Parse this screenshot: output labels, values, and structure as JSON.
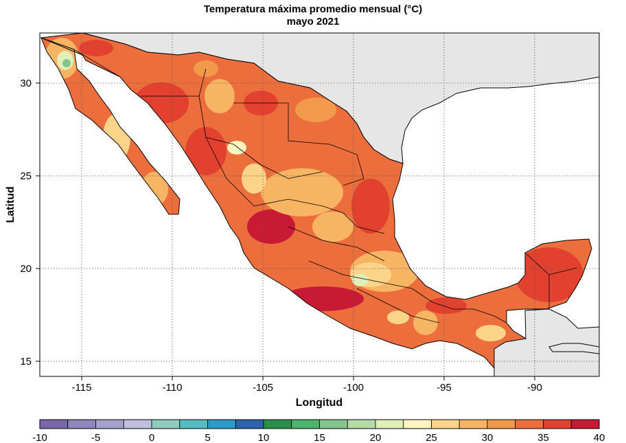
{
  "title": "Temperatura máxima promedio mensual (°C)",
  "subtitle": "mayo 2021",
  "chart_data": {
    "type": "heatmap",
    "title": "Temperatura máxima promedio mensual (°C)",
    "subtitle": "mayo 2021",
    "xlabel": "Longitud",
    "ylabel": "Latitud",
    "xlim": [
      -117.3,
      -86.3
    ],
    "ylim": [
      14.4,
      32.7
    ],
    "x_ticks": [
      -115,
      -110,
      -105,
      -100,
      -95,
      -90
    ],
    "y_ticks": [
      15,
      20,
      25,
      30
    ],
    "grid": "dotted",
    "legend": "bottom",
    "colorbar": {
      "ticks": [
        -10,
        -5,
        0,
        5,
        10,
        15,
        20,
        25,
        30,
        35,
        40
      ],
      "bins": [
        {
          "from": -10,
          "to": -7.5,
          "color": "#7a67ab"
        },
        {
          "from": -7.5,
          "to": -5,
          "color": "#8f86bd"
        },
        {
          "from": -5,
          "to": -2.5,
          "color": "#a4a1cb"
        },
        {
          "from": -2.5,
          "to": 0,
          "color": "#c0bfe0"
        },
        {
          "from": 0,
          "to": 2.5,
          "color": "#8dcdbd"
        },
        {
          "from": 2.5,
          "to": 5,
          "color": "#55bcc4"
        },
        {
          "from": 5,
          "to": 7.5,
          "color": "#2b9cc8"
        },
        {
          "from": 7.5,
          "to": 10,
          "color": "#2e63ad"
        },
        {
          "from": 10,
          "to": 12.5,
          "color": "#2a8f4a"
        },
        {
          "from": 12.5,
          "to": 15,
          "color": "#4bb56d"
        },
        {
          "from": 15,
          "to": 17.5,
          "color": "#84c58c"
        },
        {
          "from": 17.5,
          "to": 20,
          "color": "#b5dba6"
        },
        {
          "from": 20,
          "to": 22.5,
          "color": "#e0efba"
        },
        {
          "from": 22.5,
          "to": 25,
          "color": "#fcf5c2"
        },
        {
          "from": 25,
          "to": 27.5,
          "color": "#fbd48a"
        },
        {
          "from": 27.5,
          "to": 30,
          "color": "#f7b564"
        },
        {
          "from": 30,
          "to": 32.5,
          "color": "#f29a4b"
        },
        {
          "from": 32.5,
          "to": 35,
          "color": "#ec6e3c"
        },
        {
          "from": 35,
          "to": 37.5,
          "color": "#e2412f"
        },
        {
          "from": 37.5,
          "to": 40,
          "color": "#c81a35"
        }
      ]
    }
  }
}
